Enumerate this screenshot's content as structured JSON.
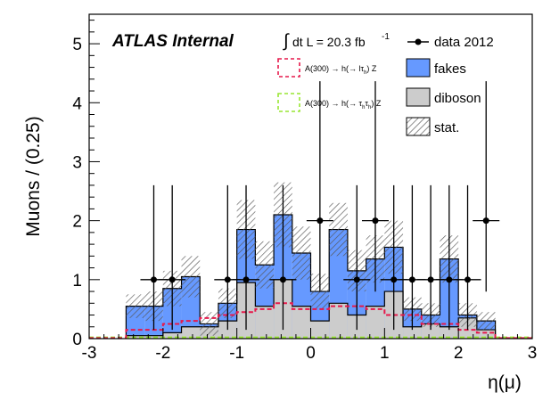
{
  "chart_data": {
    "type": "bar",
    "xlabel": "η(μ)",
    "ylabel": "Muons / (0.25)",
    "xlim": [
      -3,
      3
    ],
    "ylim": [
      0,
      5.5
    ],
    "x_ticks": [
      "-3",
      "-2",
      "-1",
      "0",
      "1",
      "2",
      "3"
    ],
    "y_ticks": [
      "0",
      "1",
      "2",
      "3",
      "4",
      "5"
    ],
    "bin_edges": [
      -2.5,
      -2.25,
      -2.0,
      -1.75,
      -1.5,
      -1.25,
      -1.0,
      -0.75,
      -0.5,
      -0.25,
      0.0,
      0.25,
      0.5,
      0.75,
      1.0,
      1.25,
      1.5,
      1.75,
      2.0,
      2.25,
      2.5
    ],
    "diboson": [
      0.05,
      0.05,
      0.1,
      0.2,
      0.2,
      0.3,
      0.95,
      0.55,
      1.0,
      0.55,
      0.3,
      0.6,
      0.4,
      0.55,
      0.8,
      0.2,
      0.25,
      0.2,
      0.35,
      0.15
    ],
    "stack_total": [
      0.55,
      0.55,
      0.85,
      1.05,
      0.25,
      0.6,
      1.85,
      1.25,
      2.1,
      1.45,
      0.8,
      1.85,
      1.15,
      1.35,
      1.55,
      0.5,
      0.4,
      1.35,
      0.4,
      0.3
    ],
    "stat_err": [
      0.2,
      0.25,
      0.3,
      0.35,
      0.2,
      0.25,
      0.5,
      0.4,
      0.55,
      0.45,
      0.3,
      0.45,
      0.35,
      0.4,
      0.45,
      0.2,
      0.2,
      0.4,
      0.2,
      0.15
    ],
    "signal_ltau": [
      0.15,
      0.15,
      0.25,
      0.3,
      0.35,
      0.4,
      0.45,
      0.5,
      0.6,
      0.5,
      0.5,
      0.55,
      0.55,
      0.5,
      0.4,
      0.4,
      0.25,
      0.25,
      0.15,
      0.1
    ],
    "signal_tautau": [
      0.02,
      0.02,
      0.02,
      0.02,
      0.02,
      0.02,
      0.02,
      0.02,
      0.02,
      0.02,
      0.02,
      0.02,
      0.02,
      0.02,
      0.02,
      0.02,
      0.02,
      0.02,
      0.02,
      0.02
    ],
    "data_x": [
      -2.125,
      -1.875,
      -1.125,
      -0.875,
      -0.375,
      0.125,
      0.625,
      0.875,
      1.125,
      1.375,
      1.625,
      1.875,
      2.125,
      2.375
    ],
    "data_y": [
      1,
      1,
      1,
      1,
      1,
      2,
      1,
      2,
      1,
      1,
      1,
      1,
      1,
      2
    ],
    "legend_position": "top-right",
    "grid": false,
    "colors": {
      "fakes": "#6699ff",
      "diboson": "#cccccc",
      "signal_ltau": "#e6194b",
      "signal_tautau": "#99e633",
      "data": "#000000",
      "stat": "#555555"
    }
  },
  "labels": {
    "atlas": "ATLAS Internal",
    "lumi_int": "∫",
    "lumi": "dt L = 20.3 fb",
    "lumi_exp": "-1"
  },
  "legend": {
    "data": "data 2012",
    "fakes": "fakes",
    "diboson": "diboson",
    "stat": "stat.",
    "sig_ltau_main": "A(300) → h(→ lτ",
    "sig_ltau_sub": "h",
    "sig_ltau_end": ") Z",
    "sig_tautau_main": "A(300) → h(→ τ",
    "sig_tautau_sub1": "h",
    "sig_tautau_mid": "τ",
    "sig_tautau_sub2": "h",
    "sig_tautau_end": ") Z"
  }
}
